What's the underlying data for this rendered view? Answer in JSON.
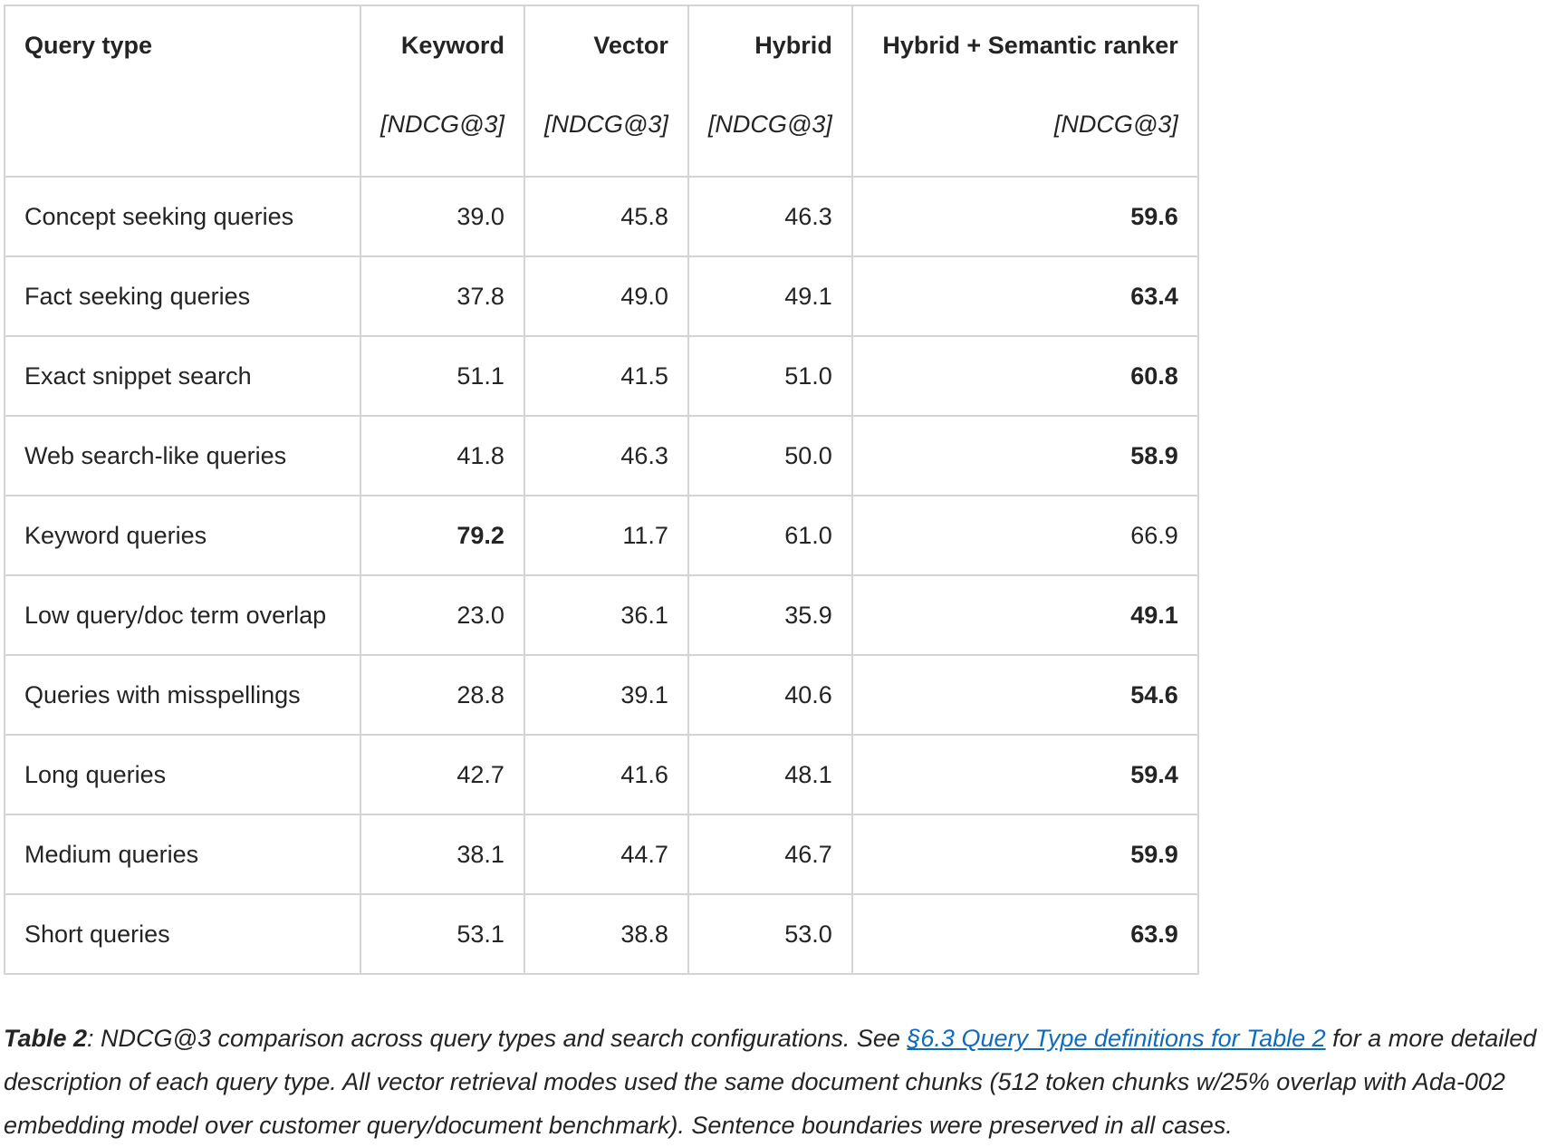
{
  "table": {
    "columns": [
      {
        "title": "Query type"
      },
      {
        "title": "Keyword",
        "unit": "[NDCG@3]"
      },
      {
        "title": "Vector",
        "unit": "[NDCG@3]"
      },
      {
        "title": "Hybrid",
        "unit": "[NDCG@3]"
      },
      {
        "title": "Hybrid + Semantic ranker",
        "unit": "[NDCG@3]"
      }
    ],
    "rows": [
      {
        "cells": [
          "Concept seeking queries",
          "39.0",
          "45.8",
          "46.3",
          "59.6"
        ],
        "bold": 4
      },
      {
        "cells": [
          "Fact seeking queries",
          "37.8",
          "49.0",
          "49.1",
          "63.4"
        ],
        "bold": 4
      },
      {
        "cells": [
          "Exact snippet search",
          "51.1",
          "41.5",
          "51.0",
          "60.8"
        ],
        "bold": 4
      },
      {
        "cells": [
          "Web search-like queries",
          "41.8",
          "46.3",
          "50.0",
          "58.9"
        ],
        "bold": 4
      },
      {
        "cells": [
          "Keyword queries",
          "79.2",
          "11.7",
          "61.0",
          "66.9"
        ],
        "bold": 1
      },
      {
        "cells": [
          "Low query/doc term overlap",
          "23.0",
          "36.1",
          "35.9",
          "49.1"
        ],
        "bold": 4
      },
      {
        "cells": [
          "Queries with misspellings",
          "28.8",
          "39.1",
          "40.6",
          "54.6"
        ],
        "bold": 4
      },
      {
        "cells": [
          "Long queries",
          "42.7",
          "41.6",
          "48.1",
          "59.4"
        ],
        "bold": 4
      },
      {
        "cells": [
          "Medium queries",
          "38.1",
          "44.7",
          "46.7",
          "59.9"
        ],
        "bold": 4
      },
      {
        "cells": [
          "Short queries",
          "53.1",
          "38.8",
          "53.0",
          "63.9"
        ],
        "bold": 4
      }
    ]
  },
  "caption": {
    "label": "Table 2",
    "text_before": ": NDCG@3 comparison across query types and search configurations. See ",
    "link": "§6.3 Query Type definitions for Table 2",
    "text_after": " for a more detailed description of each query type. All vector retrieval modes used the same document chunks (512 token chunks w/25% overlap with Ada-002 embedding model over customer query/document benchmark). Sentence boundaries were preserved in all cases."
  }
}
